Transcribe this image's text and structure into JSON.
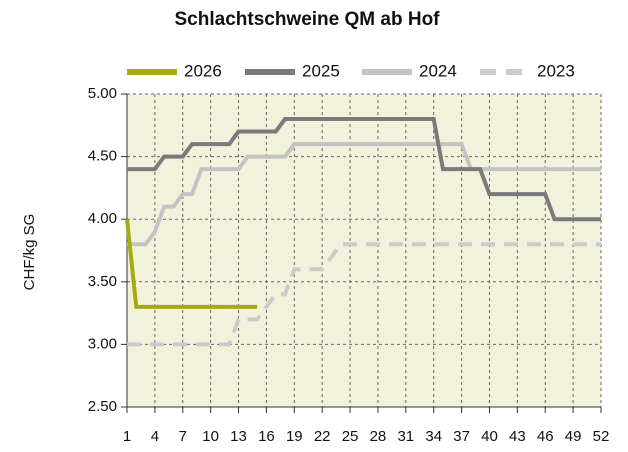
{
  "chart_data": {
    "type": "line",
    "title": "Schlachtschweine QM ab Hof",
    "y_label": "CHF/kg SG",
    "x": [
      1,
      2,
      3,
      4,
      5,
      6,
      7,
      8,
      9,
      10,
      11,
      12,
      13,
      14,
      15,
      16,
      17,
      18,
      19,
      20,
      21,
      22,
      23,
      24,
      25,
      26,
      27,
      28,
      29,
      30,
      31,
      32,
      33,
      34,
      35,
      36,
      37,
      38,
      39,
      40,
      41,
      42,
      43,
      44,
      45,
      46,
      47,
      48,
      49,
      50,
      51,
      52
    ],
    "xlim": [
      1,
      52
    ],
    "xticks": [
      1,
      4,
      7,
      10,
      13,
      16,
      19,
      22,
      25,
      28,
      31,
      34,
      37,
      40,
      43,
      46,
      49,
      52
    ],
    "ylim": [
      2.5,
      5
    ],
    "yticks": [
      {
        "value": 2.5,
        "label": "2.50"
      },
      {
        "value": 3,
        "label": "3.00"
      },
      {
        "value": 3.5,
        "label": "3.50"
      },
      {
        "value": 4,
        "label": "4.00"
      },
      {
        "value": 4.5,
        "label": "4.50"
      },
      {
        "value": 5,
        "label": "5.00"
      }
    ],
    "grid": true,
    "legend": "top",
    "series": [
      {
        "name": "2026",
        "color": "#a3ad12",
        "style": "solid",
        "values": [
          4.0,
          3.3,
          3.3,
          3.3,
          3.3,
          3.3,
          3.3,
          3.3,
          3.3,
          3.3,
          3.3,
          3.3,
          3.3,
          3.3,
          3.3,
          null,
          null,
          null,
          null,
          null,
          null,
          null,
          null,
          null,
          null,
          null,
          null,
          null,
          null,
          null,
          null,
          null,
          null,
          null,
          null,
          null,
          null,
          null,
          null,
          null,
          null,
          null,
          null,
          null,
          null,
          null,
          null,
          null,
          null,
          null,
          null,
          null
        ]
      },
      {
        "name": "2025",
        "color": "#7a7a7a",
        "style": "solid",
        "values": [
          4.4,
          4.4,
          4.4,
          4.4,
          4.5,
          4.5,
          4.5,
          4.6,
          4.6,
          4.6,
          4.6,
          4.6,
          4.7,
          4.7,
          4.7,
          4.7,
          4.7,
          4.8,
          4.8,
          4.8,
          4.8,
          4.8,
          4.8,
          4.8,
          4.8,
          4.8,
          4.8,
          4.8,
          4.8,
          4.8,
          4.8,
          4.8,
          4.8,
          4.8,
          4.4,
          4.4,
          4.4,
          4.4,
          4.4,
          4.2,
          4.2,
          4.2,
          4.2,
          4.2,
          4.2,
          4.2,
          4.0,
          4.0,
          4.0,
          4.0,
          4.0,
          4.0
        ]
      },
      {
        "name": "2024",
        "color": "#c3c3c3",
        "style": "solid",
        "values": [
          3.8,
          3.8,
          3.8,
          3.9,
          4.1,
          4.1,
          4.2,
          4.2,
          4.4,
          4.4,
          4.4,
          4.4,
          4.4,
          4.5,
          4.5,
          4.5,
          4.5,
          4.5,
          4.6,
          4.6,
          4.6,
          4.6,
          4.6,
          4.6,
          4.6,
          4.6,
          4.6,
          4.6,
          4.6,
          4.6,
          4.6,
          4.6,
          4.6,
          4.6,
          4.6,
          4.6,
          4.6,
          4.4,
          4.4,
          4.4,
          4.4,
          4.4,
          4.4,
          4.4,
          4.4,
          4.4,
          4.4,
          4.4,
          4.4,
          4.4,
          4.4,
          4.4
        ]
      },
      {
        "name": "2023",
        "color": "#cbcbcb",
        "style": "dashed",
        "values": [
          3.0,
          3.0,
          3.0,
          3.0,
          3.0,
          3.0,
          3.0,
          3.0,
          3.0,
          3.0,
          3.0,
          3.0,
          3.2,
          3.2,
          3.2,
          3.3,
          3.4,
          3.4,
          3.6,
          3.6,
          3.6,
          3.6,
          3.7,
          3.8,
          3.8,
          3.8,
          3.8,
          3.8,
          3.8,
          3.8,
          3.8,
          3.8,
          3.8,
          3.8,
          3.8,
          3.8,
          3.8,
          3.8,
          3.8,
          3.8,
          3.8,
          3.8,
          3.8,
          3.8,
          3.8,
          3.8,
          3.8,
          3.8,
          3.8,
          3.8,
          3.8,
          3.8
        ]
      }
    ]
  }
}
